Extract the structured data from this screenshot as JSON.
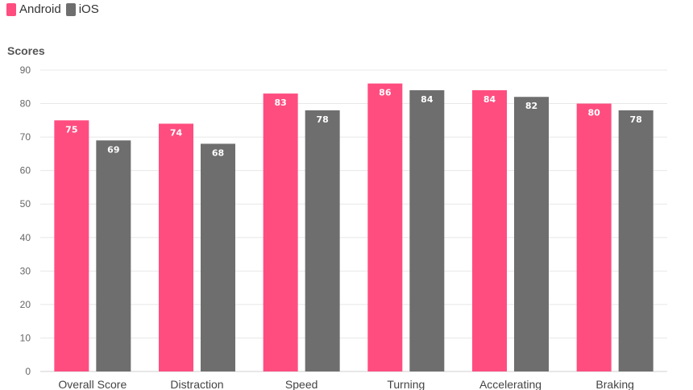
{
  "legend": {
    "android": "Android",
    "ios": "iOS"
  },
  "colors": {
    "android": "#ff4d80",
    "ios": "#6e6e6e",
    "grid": "#e8e8e8"
  },
  "chart_data": {
    "type": "bar",
    "title": "",
    "xlabel": "",
    "ylabel": "Scores",
    "ylim": [
      0,
      90
    ],
    "yticks": [
      0,
      10,
      20,
      30,
      40,
      50,
      60,
      70,
      80,
      90
    ],
    "grid": true,
    "legend_position": "top-left",
    "categories": [
      "Overall Score",
      "Distraction",
      "Speed",
      "Turning",
      "Accelerating",
      "Braking"
    ],
    "series": [
      {
        "name": "Android",
        "values": [
          75,
          74,
          83,
          86,
          84,
          80
        ]
      },
      {
        "name": "iOS",
        "values": [
          69,
          68,
          78,
          84,
          82,
          78
        ]
      }
    ]
  }
}
